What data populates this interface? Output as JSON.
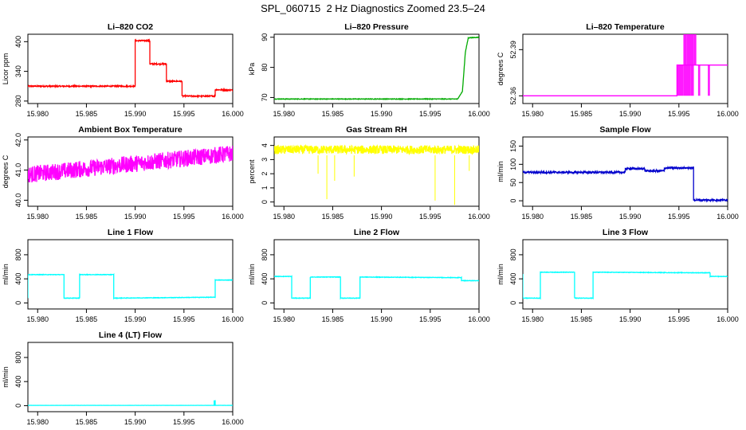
{
  "page_title": "SPL_060715  2 Hz Diagnostics Zoomed 23.5–24",
  "chart_data": [
    {
      "id": "co2",
      "type": "line",
      "title": "Li–820 CO2",
      "ylabel": "Licor ppm",
      "xlim": [
        15.979,
        16.0
      ],
      "ylim": [
        275,
        415
      ],
      "xticks": [
        15.98,
        15.985,
        15.99,
        15.995,
        16.0
      ],
      "xticklabels": [
        "15.980",
        "15.985",
        "15.990",
        "15.995",
        "16.000"
      ],
      "yticks": [
        280,
        340,
        400
      ],
      "yticklabels": [
        "280",
        "340",
        "400"
      ],
      "color": "#ff0000",
      "noise": 1.2,
      "series": [
        {
          "x": [
            15.979,
            15.99,
            15.99,
            15.9915,
            15.9915,
            15.9932,
            15.9932,
            15.9948,
            15.9948,
            15.9982,
            15.9982,
            16.0
          ],
          "y": [
            310,
            310,
            402,
            402,
            355,
            355,
            320,
            320,
            290,
            290,
            303,
            302
          ]
        }
      ]
    },
    {
      "id": "pressure",
      "type": "line",
      "title": "Li–820 Pressure",
      "ylabel": "kPa",
      "xlim": [
        15.979,
        16.0
      ],
      "ylim": [
        68,
        91
      ],
      "xticks": [
        15.98,
        15.985,
        15.99,
        15.995,
        16.0
      ],
      "xticklabels": [
        "15.980",
        "15.985",
        "15.990",
        "15.995",
        "16.000"
      ],
      "yticks": [
        70,
        80,
        90
      ],
      "yticklabels": [
        "70",
        "80",
        "90"
      ],
      "color": "#00aa00",
      "noise": 0.1,
      "series": [
        {
          "x": [
            15.979,
            15.9978,
            15.9983,
            15.9986,
            15.9989,
            16.0
          ],
          "y": [
            69.5,
            69.5,
            72,
            85,
            89.8,
            90
          ]
        }
      ]
    },
    {
      "id": "temperature",
      "type": "line",
      "title": "Li–820 Temperature",
      "ylabel": "degrees C",
      "xlim": [
        15.979,
        16.0
      ],
      "ylim": [
        52.355,
        52.4
      ],
      "xticks": [
        15.98,
        15.985,
        15.99,
        15.995,
        16.0
      ],
      "xticklabels": [
        "15.980",
        "15.985",
        "15.990",
        "15.995",
        "16.000"
      ],
      "yticks": [
        52.36,
        52.39
      ],
      "yticklabels": [
        "52.36",
        "52.39"
      ],
      "color": "#ff00ff",
      "noise": 0,
      "series": [
        {
          "x": [
            15.979,
            15.9948,
            15.9948,
            15.9955,
            15.9955,
            16.0
          ],
          "y": [
            52.36,
            52.36,
            52.38,
            52.38,
            52.38,
            52.38
          ]
        }
      ],
      "levels": [
        52.36,
        52.38,
        52.4
      ],
      "osc": [
        [
          15.9948,
          15.9965,
          52.36,
          52.38
        ],
        [
          15.997,
          15.9972,
          52.36,
          52.38
        ],
        [
          15.998,
          15.9982,
          52.36,
          52.38
        ],
        [
          15.9955,
          15.9968,
          52.38,
          52.4
        ]
      ]
    },
    {
      "id": "ambient",
      "type": "line",
      "title": "Ambient Box Temperature",
      "ylabel": "degrees C",
      "xlim": [
        15.979,
        16.0
      ],
      "ylim": [
        39.8,
        42.1
      ],
      "xticks": [
        15.98,
        15.985,
        15.99,
        15.995,
        16.0
      ],
      "xticklabels": [
        "15.980",
        "15.985",
        "15.990",
        "15.995",
        "16.000"
      ],
      "yticks": [
        40,
        41,
        42
      ],
      "yticklabels": [
        "40.0",
        "41.0",
        "42.0"
      ],
      "color": "#ff00ff",
      "noise": 0.28,
      "series": [
        {
          "x": [
            15.979,
            16.0
          ],
          "y": [
            40.85,
            41.55
          ]
        }
      ]
    },
    {
      "id": "rh",
      "type": "line",
      "title": "Gas Stream RH",
      "ylabel": "percent",
      "xlim": [
        15.979,
        16.0
      ],
      "ylim": [
        -0.3,
        4.6
      ],
      "xticks": [
        15.98,
        15.985,
        15.99,
        15.995,
        16.0
      ],
      "xticklabels": [
        "15.980",
        "15.985",
        "15.990",
        "15.995",
        "16.000"
      ],
      "yticks": [
        0,
        1,
        2,
        3,
        4
      ],
      "yticklabels": [
        "0",
        "1",
        "2",
        "3",
        "4"
      ],
      "color": "#ffff00",
      "noise": 0.3,
      "series": [
        {
          "x": [
            15.979,
            16.0
          ],
          "y": [
            3.7,
            3.7
          ]
        }
      ],
      "dips": [
        [
          15.9844,
          0.2
        ],
        [
          15.9852,
          1.5
        ],
        [
          15.9835,
          2.0
        ],
        [
          15.9872,
          1.8
        ],
        [
          15.9955,
          0.1
        ],
        [
          15.9975,
          -0.2
        ],
        [
          15.999,
          2.2
        ]
      ]
    },
    {
      "id": "sample_flow",
      "type": "line",
      "title": "Sample Flow",
      "ylabel": "ml/min",
      "xlim": [
        15.979,
        16.0
      ],
      "ylim": [
        -15,
        175
      ],
      "xticks": [
        15.98,
        15.985,
        15.99,
        15.995,
        16.0
      ],
      "xticklabels": [
        "15.980",
        "15.985",
        "15.990",
        "15.995",
        "16.000"
      ],
      "yticks": [
        0,
        50,
        100,
        150
      ],
      "yticklabels": [
        "0",
        "50",
        "100",
        "150"
      ],
      "color": "#0000cc",
      "noise": 2.5,
      "series": [
        {
          "x": [
            15.979,
            15.9895,
            15.9895,
            15.9915,
            15.9915,
            15.9935,
            15.9935,
            15.9965,
            15.9965,
            16.0
          ],
          "y": [
            78,
            78,
            88,
            88,
            82,
            82,
            90,
            90,
            2,
            2
          ]
        }
      ]
    },
    {
      "id": "line1",
      "type": "line",
      "title": "Line 1 Flow",
      "ylabel": "ml/min",
      "xlim": [
        15.979,
        16.0
      ],
      "ylim": [
        -100,
        1050
      ],
      "xticks": [
        15.98,
        15.985,
        15.99,
        15.995,
        16.0
      ],
      "xticklabels": [
        "15.980",
        "15.985",
        "15.990",
        "15.995",
        "16.000"
      ],
      "yticks": [
        0,
        400,
        800
      ],
      "yticklabels": [
        "0",
        "400",
        "800"
      ],
      "color": "#00ffff",
      "noise": 4,
      "series": [
        {
          "x": [
            15.979,
            15.979,
            15.9827,
            15.9827,
            15.9843,
            15.9843,
            15.9878,
            15.9878,
            15.9982,
            15.9982,
            16.0
          ],
          "y": [
            80,
            470,
            470,
            80,
            80,
            470,
            470,
            80,
            95,
            380,
            380
          ]
        }
      ]
    },
    {
      "id": "line2",
      "type": "line",
      "title": "Line 2 Flow",
      "ylabel": "ml/min",
      "xlim": [
        15.979,
        16.0
      ],
      "ylim": [
        -100,
        1050
      ],
      "xticks": [
        15.98,
        15.985,
        15.99,
        15.995,
        16.0
      ],
      "xticklabels": [
        "15.980",
        "15.985",
        "15.990",
        "15.995",
        "16.000"
      ],
      "yticks": [
        0,
        400,
        800
      ],
      "yticklabels": [
        "0",
        "400",
        "800"
      ],
      "color": "#00ffff",
      "noise": 4,
      "series": [
        {
          "x": [
            15.979,
            15.9808,
            15.9808,
            15.9827,
            15.9827,
            15.9858,
            15.9858,
            15.9878,
            15.9878,
            15.9982,
            15.9982,
            16.0
          ],
          "y": [
            440,
            440,
            80,
            80,
            430,
            430,
            80,
            80,
            430,
            420,
            370,
            370
          ]
        }
      ]
    },
    {
      "id": "line3",
      "type": "line",
      "title": "Line 3 Flow",
      "ylabel": "ml/min",
      "xlim": [
        15.979,
        16.0
      ],
      "ylim": [
        -100,
        1050
      ],
      "xticks": [
        15.98,
        15.985,
        15.99,
        15.995,
        16.0
      ],
      "xticklabels": [
        "15.980",
        "15.985",
        "15.990",
        "15.995",
        "16.000"
      ],
      "yticks": [
        0,
        400,
        800
      ],
      "yticklabels": [
        "0",
        "400",
        "800"
      ],
      "color": "#00ffff",
      "noise": 4,
      "series": [
        {
          "x": [
            15.979,
            15.979,
            15.9808,
            15.9808,
            15.9843,
            15.9843,
            15.9862,
            15.9862,
            15.9982,
            15.9982,
            16.0
          ],
          "y": [
            480,
            80,
            80,
            510,
            510,
            80,
            80,
            510,
            500,
            440,
            440
          ]
        }
      ]
    },
    {
      "id": "line4",
      "type": "line",
      "title": "Line 4 (LT) Flow",
      "ylabel": "ml/min",
      "xlim": [
        15.979,
        16.0
      ],
      "ylim": [
        -100,
        1050
      ],
      "xticks": [
        15.98,
        15.985,
        15.99,
        15.995,
        16.0
      ],
      "xticklabels": [
        "15.980",
        "15.985",
        "15.990",
        "15.995",
        "16.000"
      ],
      "yticks": [
        0,
        400,
        800
      ],
      "yticklabels": [
        "0",
        "400",
        "800"
      ],
      "color": "#00ffff",
      "noise": 1,
      "series": [
        {
          "x": [
            15.979,
            15.9981,
            15.9981,
            15.9982,
            15.9982,
            16.0
          ],
          "y": [
            5,
            5,
            80,
            80,
            5,
            5
          ]
        }
      ]
    }
  ]
}
